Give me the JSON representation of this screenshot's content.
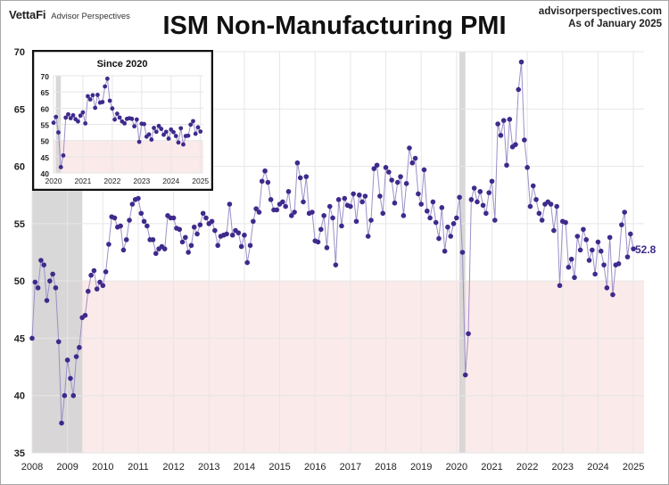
{
  "header": {
    "brand_logo": "VettaFi",
    "brand_sub": "Advisor Perspectives",
    "title": "ISM Non-Manufacturing PMI",
    "source": "advisorperspectives.com",
    "as_of": "As of January 2025"
  },
  "colors": {
    "series": "#3f2a8c",
    "series_line": "#9c90c8",
    "recession": "#d4d4d4",
    "contraction": "#fbeaea",
    "grid": "#e6e6e6"
  },
  "chart_data": [
    {
      "type": "line",
      "title": "ISM Non-Manufacturing PMI",
      "xlabel": "",
      "ylabel": "",
      "xlim": [
        2008,
        2025.3
      ],
      "ylim": [
        35,
        70
      ],
      "x_ticks": [
        "2008",
        "2009",
        "2010",
        "2011",
        "2012",
        "2013",
        "2014",
        "2015",
        "2016",
        "2017",
        "2018",
        "2019",
        "2020",
        "2021",
        "2022",
        "2023",
        "2024",
        "2025"
      ],
      "y_ticks": [
        "35",
        "40",
        "45",
        "50",
        "55",
        "60",
        "65",
        "70"
      ],
      "grid": true,
      "start": "2008-01",
      "frequency": "monthly",
      "last_value_label": "52.8",
      "shaded_regions": [
        {
          "name": "recession",
          "from": 2008.0,
          "to": 2009.42
        },
        {
          "name": "recession",
          "from": 2020.08,
          "to": 2020.25
        },
        {
          "name": "contraction-zone",
          "y_from": 35,
          "y_to": 50
        }
      ],
      "series": [
        {
          "name": "ISM Non-Manufacturing PMI",
          "values": [
            45.0,
            49.9,
            49.4,
            51.8,
            51.4,
            48.3,
            50.0,
            50.6,
            49.4,
            44.7,
            37.6,
            40.0,
            43.1,
            41.5,
            40.0,
            43.4,
            44.2,
            46.8,
            47.0,
            49.1,
            50.5,
            50.9,
            49.3,
            49.9,
            49.6,
            50.8,
            53.2,
            55.6,
            55.5,
            54.7,
            54.8,
            52.7,
            53.6,
            55.3,
            56.7,
            57.1,
            57.2,
            55.9,
            55.2,
            54.8,
            53.6,
            53.6,
            52.4,
            52.8,
            53.0,
            52.8,
            55.7,
            55.5,
            55.5,
            54.6,
            54.5,
            53.4,
            53.8,
            52.5,
            53.1,
            54.7,
            54.1,
            54.9,
            55.9,
            55.5,
            55.0,
            55.2,
            54.4,
            53.1,
            53.9,
            54.0,
            54.1,
            56.7,
            54.0,
            54.4,
            54.2,
            53.0,
            54.0,
            51.6,
            53.1,
            55.2,
            56.3,
            56.0,
            58.7,
            59.6,
            58.6,
            57.1,
            56.2,
            56.2,
            56.7,
            56.9,
            56.5,
            57.8,
            55.7,
            56.0,
            60.3,
            59.0,
            56.9,
            59.1,
            55.9,
            56.0,
            53.5,
            53.4,
            54.5,
            55.7,
            52.9,
            56.5,
            55.5,
            51.4,
            57.1,
            54.8,
            57.2,
            56.6,
            56.5,
            57.6,
            55.2,
            57.5,
            56.9,
            57.4,
            53.9,
            55.3,
            59.8,
            60.1,
            57.4,
            55.9,
            59.9,
            59.5,
            58.8,
            56.8,
            58.6,
            59.1,
            55.7,
            58.5,
            61.6,
            60.3,
            60.7,
            57.6,
            56.7,
            59.7,
            56.1,
            55.5,
            56.9,
            55.1,
            53.7,
            56.4,
            52.6,
            54.7,
            53.9,
            55.0,
            55.5,
            57.3,
            52.5,
            41.8,
            45.4,
            57.1,
            58.1,
            56.9,
            57.8,
            56.6,
            55.9,
            57.7,
            58.7,
            55.3,
            63.7,
            62.7,
            64.0,
            60.1,
            64.1,
            61.7,
            61.9,
            66.7,
            69.1,
            62.3,
            59.9,
            56.5,
            58.3,
            57.1,
            55.9,
            55.3,
            56.7,
            56.9,
            56.7,
            54.4,
            56.5,
            49.6,
            55.2,
            55.1,
            51.2,
            51.9,
            50.3,
            53.9,
            52.7,
            54.5,
            53.6,
            51.8,
            52.7,
            50.6,
            53.4,
            52.6,
            51.4,
            49.4,
            53.8,
            48.8,
            51.4,
            51.5,
            54.9,
            56.0,
            52.1,
            54.1,
            52.8
          ]
        }
      ]
    },
    {
      "type": "line",
      "title": "Since 2020",
      "inset": true,
      "legend_position": "top-left",
      "xlim": [
        2020,
        2025.1
      ],
      "ylim": [
        40,
        70
      ],
      "x_ticks": [
        "2020",
        "2021",
        "2022",
        "2023",
        "2024",
        "2025"
      ],
      "y_ticks": [
        "40",
        "45",
        "50",
        "55",
        "60",
        "65",
        "70"
      ],
      "grid": true,
      "start": "2020-01",
      "series_ref": "same series, from 2020-01 to 2025-01"
    }
  ]
}
